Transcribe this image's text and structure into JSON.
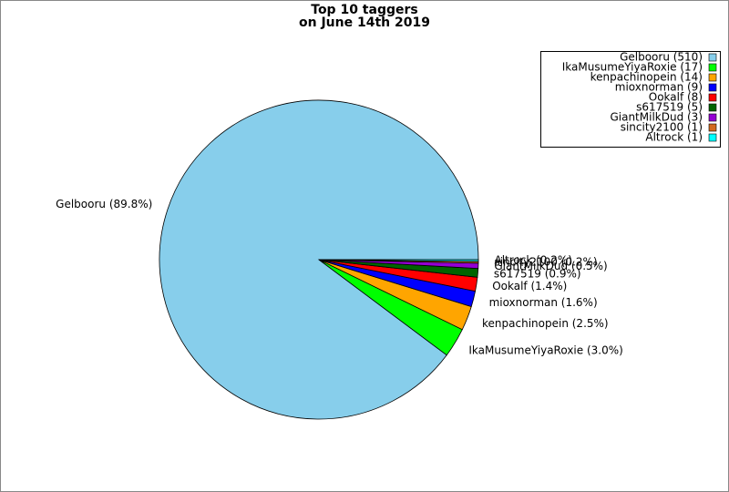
{
  "chart_data": {
    "type": "pie",
    "title": [
      "Top 10 taggers",
      "on June 14th 2019"
    ],
    "categories": [
      "Gelbooru",
      "IkaMusumeYiyaRoxie",
      "kenpachinopein",
      "mioxnorman",
      "Ookalf",
      "s617519",
      "GiantMilkDud",
      "sincity2100",
      "Altrock"
    ],
    "values": [
      510,
      17,
      14,
      9,
      8,
      5,
      3,
      1,
      1
    ],
    "value_labels": [
      "Gelbooru (89.8%)",
      "IkaMusumeYiyaRoxie (3.0%)",
      "kenpachinopein (2.5%)",
      "mioxnorman (1.6%)",
      "Ookalf (1.4%)",
      "s617519 (0.9%)",
      "GiantMilkDud (0.5%)",
      "sincity2100 (0.2%)",
      "Altrock (0.2%)"
    ],
    "legend_labels": [
      "Gelbooru (510)",
      "IkaMusumeYiyaRoxie (17)",
      "kenpachinopein (14)",
      "mioxnorman (9)",
      "Ookalf (8)",
      "s617519 (5)",
      "GiantMilkDud (3)",
      "sincity2100 (1)",
      "Altrock (1)"
    ],
    "colors": [
      "#87ceeb",
      "#00ff00",
      "#ffa500",
      "#0000ff",
      "#ff0000",
      "#006400",
      "#9400d3",
      "#d2691e",
      "#00ffff"
    ],
    "legend": "upper right"
  }
}
